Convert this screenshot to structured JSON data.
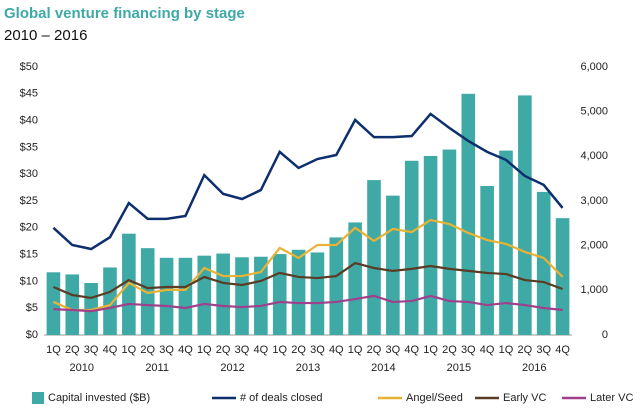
{
  "chart_data": {
    "type": "bar-line",
    "title": "Global venture financing by stage",
    "subtitle": "2010 – 2016",
    "categories": [
      "1Q",
      "2Q",
      "3Q",
      "4Q",
      "1Q",
      "2Q",
      "3Q",
      "4Q",
      "1Q",
      "2Q",
      "3Q",
      "4Q",
      "1Q",
      "2Q",
      "3Q",
      "4Q",
      "1Q",
      "2Q",
      "3Q",
      "4Q",
      "1Q",
      "2Q",
      "3Q",
      "4Q",
      "1Q",
      "2Q",
      "3Q",
      "4Q"
    ],
    "years": [
      "2010",
      "2011",
      "2012",
      "2013",
      "2014",
      "2015",
      "2016"
    ],
    "series": [
      {
        "name": "Capital invested ($B)",
        "type": "bar",
        "color": "#3fa9a6",
        "values": [
          11.7,
          11.3,
          9.7,
          12.6,
          18.9,
          16.2,
          14.4,
          14.4,
          14.8,
          15.2,
          14.5,
          14.6,
          15.1,
          15.9,
          15.4,
          18.2,
          21.0,
          28.9,
          26.0,
          32.5,
          33.4,
          34.6,
          45.0,
          27.8,
          34.4,
          44.7,
          26.7,
          21.8
        ]
      },
      {
        "name": "# of deals closed",
        "type": "line",
        "axis": "y2",
        "color": "#0d2f6e",
        "values": [
          2400,
          2015,
          1925,
          2190,
          2955,
          2600,
          2600,
          2665,
          3580,
          3160,
          3045,
          3245,
          4100,
          3740,
          3940,
          4030,
          4815,
          4430,
          4430,
          4455,
          4950,
          4635,
          4345,
          4100,
          3920,
          3560,
          3360,
          2845
        ]
      },
      {
        "name": "Angel/Seed",
        "type": "line",
        "axis": "y2",
        "color": "#e8b334",
        "values": [
          740,
          560,
          560,
          670,
          1165,
          940,
          1010,
          1010,
          1500,
          1320,
          1320,
          1410,
          1950,
          1725,
          2015,
          2015,
          2400,
          2105,
          2375,
          2305,
          2575,
          2485,
          2285,
          2125,
          2040,
          1860,
          1725,
          1300
        ]
      },
      {
        "name": "Early VC",
        "type": "line",
        "axis": "y2",
        "color": "#5a3b23",
        "values": [
          1075,
          895,
          830,
          965,
          1230,
          1050,
          1075,
          1075,
          1300,
          1165,
          1120,
          1210,
          1390,
          1300,
          1275,
          1320,
          1610,
          1500,
          1435,
          1480,
          1545,
          1480,
          1435,
          1390,
          1365,
          1230,
          1185,
          1030
        ]
      },
      {
        "name": "Later VC",
        "type": "line",
        "axis": "y2",
        "color": "#a03f8c",
        "values": [
          580,
          560,
          535,
          605,
          695,
          670,
          650,
          605,
          695,
          650,
          625,
          650,
          740,
          715,
          715,
          740,
          805,
          875,
          740,
          760,
          875,
          760,
          740,
          670,
          715,
          670,
          605,
          560
        ]
      }
    ],
    "ylim": [
      0,
      50
    ],
    "yticks": [
      {
        "value": 0,
        "label": "$0"
      },
      {
        "value": 5,
        "label": "$5"
      },
      {
        "value": 10,
        "label": "$10"
      },
      {
        "value": 15,
        "label": "$15"
      },
      {
        "value": 20,
        "label": "$20"
      },
      {
        "value": 25,
        "label": "$25"
      },
      {
        "value": 30,
        "label": "$30"
      },
      {
        "value": 35,
        "label": "$35"
      },
      {
        "value": 40,
        "label": "$40"
      },
      {
        "value": 45,
        "label": "$45"
      },
      {
        "value": 50,
        "label": "$50"
      }
    ],
    "y2lim": [
      0,
      6000
    ],
    "y2ticks": [
      0,
      {
        "value": 1000,
        "label": "1,000"
      },
      {
        "value": 2000,
        "label": "2,000"
      },
      {
        "value": 3000,
        "label": "3,000"
      },
      {
        "value": 4000,
        "label": "4,000"
      },
      {
        "value": 5000,
        "label": "5,000"
      },
      {
        "value": 6000,
        "label": "6,000"
      }
    ],
    "grid": false
  }
}
